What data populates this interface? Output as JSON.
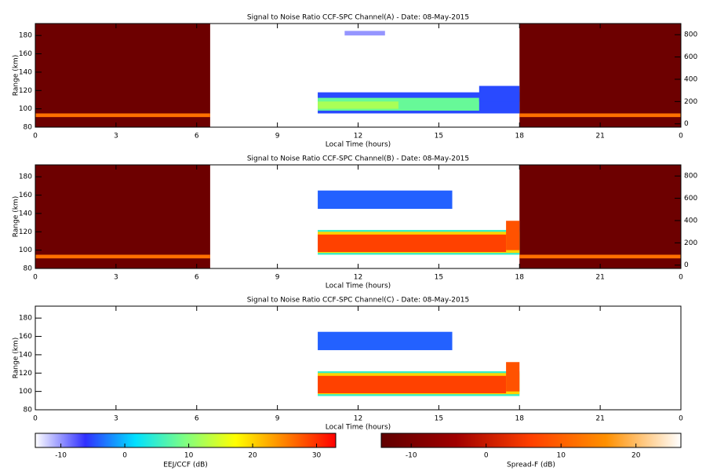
{
  "chart_data": [
    {
      "type": "heatmap",
      "title": "Signal to Noise Ratio CCF-SPC Channel(A) - Date: 08-May-2015",
      "xlabel": "Local Time (hours)",
      "ylabel": "Range (km)",
      "xlim": [
        0,
        24
      ],
      "xticks": [
        0,
        3,
        6,
        9,
        12,
        15,
        18,
        21,
        {
          "value": 24,
          "label": "0"
        }
      ],
      "ylim": [
        80,
        193
      ],
      "yticks": [
        80,
        100,
        120,
        140,
        160,
        180
      ],
      "y2lim": [
        -30,
        900
      ],
      "y2ticks": [
        0,
        200,
        400,
        600,
        800
      ],
      "spreadf_cells": [
        {
          "x": [
            0,
            6.5
          ],
          "y": [
            80,
            193
          ],
          "value": -12
        },
        {
          "x": [
            0,
            6.5
          ],
          "y": [
            91,
            95
          ],
          "value": 12
        },
        {
          "x": [
            18,
            24
          ],
          "y": [
            80,
            193
          ],
          "value": -12
        },
        {
          "x": [
            18,
            24
          ],
          "y": [
            91,
            95
          ],
          "value": 12
        }
      ],
      "eej_cells": [
        {
          "x": [
            10.5,
            18
          ],
          "y": [
            95,
            118
          ],
          "value": -5
        },
        {
          "x": [
            10.5,
            16.5
          ],
          "y": [
            98,
            112
          ],
          "value": 8
        },
        {
          "x": [
            10.5,
            13.5
          ],
          "y": [
            100,
            108
          ],
          "value": 12
        },
        {
          "x": [
            16.5,
            18
          ],
          "y": [
            108,
            125
          ],
          "value": -5
        },
        {
          "x": [
            11.5,
            13
          ],
          "y": [
            180,
            185
          ],
          "value": -10
        }
      ]
    },
    {
      "type": "heatmap",
      "title": "Signal to Noise Ratio CCF-SPC Channel(B) - Date: 08-May-2015",
      "xlabel": "Local Time (hours)",
      "ylabel": "Range (km)",
      "xlim": [
        0,
        24
      ],
      "xticks": [
        0,
        3,
        6,
        9,
        12,
        15,
        18,
        21,
        {
          "value": 24,
          "label": "0"
        }
      ],
      "ylim": [
        80,
        193
      ],
      "yticks": [
        80,
        100,
        120,
        140,
        160,
        180
      ],
      "y2lim": [
        -30,
        900
      ],
      "y2ticks": [
        0,
        200,
        400,
        600,
        800
      ],
      "spreadf_cells": [
        {
          "x": [
            0,
            6.5
          ],
          "y": [
            80,
            193
          ],
          "value": -12
        },
        {
          "x": [
            0,
            6.5
          ],
          "y": [
            91,
            95
          ],
          "value": 12
        },
        {
          "x": [
            18,
            24
          ],
          "y": [
            80,
            193
          ],
          "value": -12
        },
        {
          "x": [
            18,
            24
          ],
          "y": [
            91,
            95
          ],
          "value": 12
        }
      ],
      "eej_cells": [
        {
          "x": [
            10.5,
            15.5
          ],
          "y": [
            145,
            165
          ],
          "value": -4
        },
        {
          "x": [
            10.5,
            18
          ],
          "y": [
            95,
            122
          ],
          "value": 5
        },
        {
          "x": [
            10.5,
            18
          ],
          "y": [
            97,
            120
          ],
          "value": 20
        },
        {
          "x": [
            10.5,
            17.5
          ],
          "y": [
            98,
            117
          ],
          "value": 29
        },
        {
          "x": [
            17.5,
            18
          ],
          "y": [
            100,
            132
          ],
          "value": 28
        }
      ]
    },
    {
      "type": "heatmap",
      "title": "Signal to Noise Ratio CCF-SPC Channel(C) - Date: 08-May-2015",
      "xlabel": "Local Time (hours)",
      "ylabel": "Range (km)",
      "xlim": [
        0,
        24
      ],
      "xticks": [
        0,
        3,
        6,
        9,
        12,
        15,
        18,
        21,
        {
          "value": 24,
          "label": "0"
        }
      ],
      "ylim": [
        80,
        193
      ],
      "yticks": [
        80,
        100,
        120,
        140,
        160,
        180
      ],
      "spreadf_cells": [],
      "eej_cells": [
        {
          "x": [
            10.5,
            15.5
          ],
          "y": [
            145,
            165
          ],
          "value": -4
        },
        {
          "x": [
            10.5,
            18
          ],
          "y": [
            95,
            122
          ],
          "value": 5
        },
        {
          "x": [
            10.5,
            18
          ],
          "y": [
            97,
            120
          ],
          "value": 20
        },
        {
          "x": [
            10.5,
            17.5
          ],
          "y": [
            98,
            117
          ],
          "value": 29
        },
        {
          "x": [
            17.5,
            18
          ],
          "y": [
            100,
            132
          ],
          "value": 28
        }
      ]
    }
  ],
  "colorbars": [
    {
      "label": "EEJ/CCF (dB)",
      "lim": [
        -14,
        33
      ],
      "ticks": [
        -10,
        0,
        10,
        20,
        30
      ],
      "colors": [
        "#ffffff",
        "#3030ff",
        "#00e0ff",
        "#80ff80",
        "#ffff00",
        "#ff8000",
        "#ff0000"
      ]
    },
    {
      "label": "Spread-F (dB)",
      "lim": [
        -14,
        26
      ],
      "ticks": [
        -10,
        0,
        10,
        20
      ],
      "colors": [
        "#600000",
        "#a00000",
        "#ff4000",
        "#ff9000",
        "#ffffff"
      ]
    }
  ]
}
